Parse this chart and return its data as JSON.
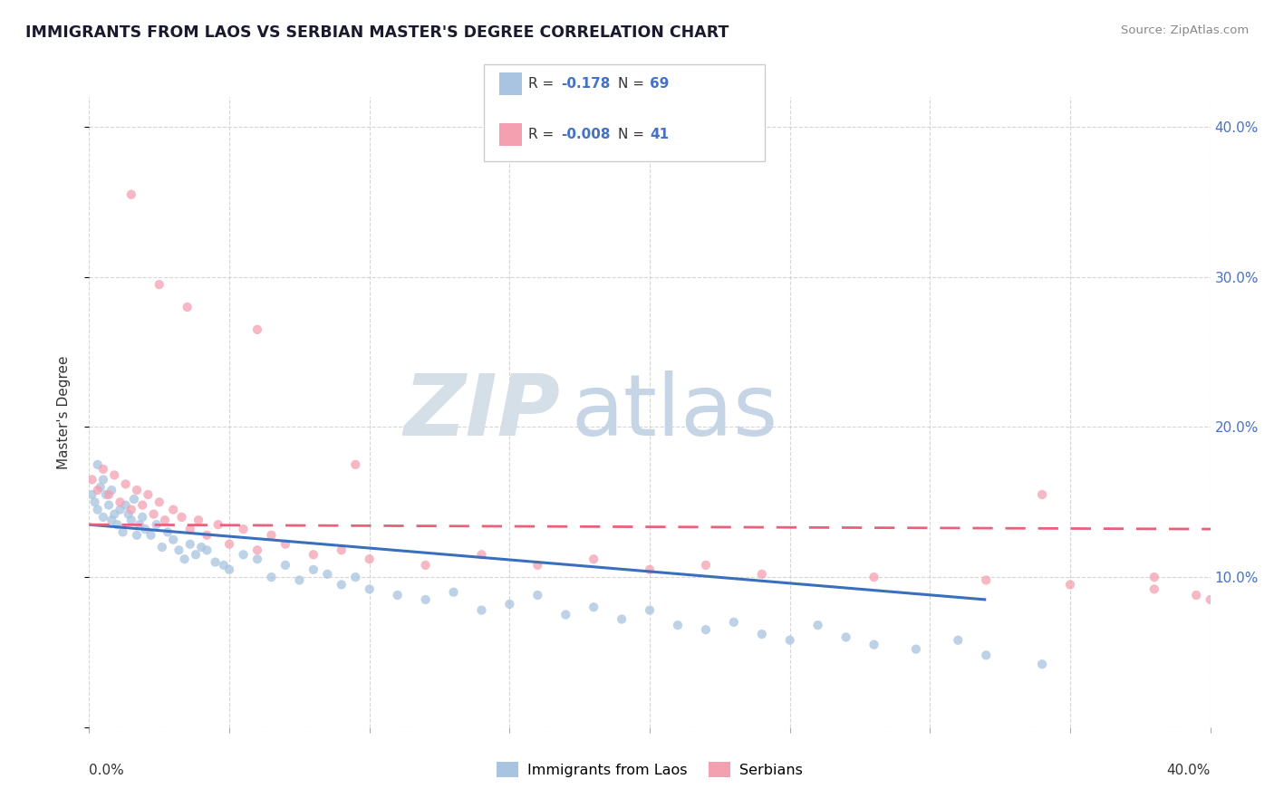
{
  "title": "IMMIGRANTS FROM LAOS VS SERBIAN MASTER'S DEGREE CORRELATION CHART",
  "source": "Source: ZipAtlas.com",
  "ylabel": "Master's Degree",
  "r_laos": -0.178,
  "n_laos": 69,
  "r_serbian": -0.008,
  "n_serbian": 41,
  "color_laos": "#a8c4e0",
  "color_serbian": "#f4a0b0",
  "color_laos_line": "#3a6fbd",
  "color_serbian_line": "#e8607a",
  "xlim": [
    0.0,
    0.4
  ],
  "ylim": [
    0.0,
    0.42
  ],
  "background": "#ffffff",
  "laos_x": [
    0.001,
    0.002,
    0.003,
    0.004,
    0.005,
    0.006,
    0.007,
    0.008,
    0.009,
    0.01,
    0.011,
    0.012,
    0.013,
    0.014,
    0.015,
    0.016,
    0.017,
    0.018,
    0.019,
    0.02,
    0.022,
    0.024,
    0.026,
    0.028,
    0.03,
    0.032,
    0.034,
    0.036,
    0.038,
    0.04,
    0.042,
    0.045,
    0.048,
    0.05,
    0.055,
    0.06,
    0.065,
    0.07,
    0.075,
    0.08,
    0.085,
    0.09,
    0.095,
    0.1,
    0.11,
    0.12,
    0.13,
    0.14,
    0.15,
    0.16,
    0.17,
    0.18,
    0.19,
    0.2,
    0.21,
    0.22,
    0.23,
    0.24,
    0.25,
    0.26,
    0.27,
    0.28,
    0.295,
    0.31,
    0.32,
    0.34,
    0.003,
    0.005,
    0.008
  ],
  "laos_y": [
    0.155,
    0.15,
    0.145,
    0.16,
    0.14,
    0.155,
    0.148,
    0.138,
    0.142,
    0.135,
    0.145,
    0.13,
    0.148,
    0.142,
    0.138,
    0.152,
    0.128,
    0.135,
    0.14,
    0.132,
    0.128,
    0.135,
    0.12,
    0.13,
    0.125,
    0.118,
    0.112,
    0.122,
    0.115,
    0.12,
    0.118,
    0.11,
    0.108,
    0.105,
    0.115,
    0.112,
    0.1,
    0.108,
    0.098,
    0.105,
    0.102,
    0.095,
    0.1,
    0.092,
    0.088,
    0.085,
    0.09,
    0.078,
    0.082,
    0.088,
    0.075,
    0.08,
    0.072,
    0.078,
    0.068,
    0.065,
    0.07,
    0.062,
    0.058,
    0.068,
    0.06,
    0.055,
    0.052,
    0.058,
    0.048,
    0.042,
    0.175,
    0.165,
    0.158
  ],
  "serbian_x": [
    0.001,
    0.003,
    0.005,
    0.007,
    0.009,
    0.011,
    0.013,
    0.015,
    0.017,
    0.019,
    0.021,
    0.023,
    0.025,
    0.027,
    0.03,
    0.033,
    0.036,
    0.039,
    0.042,
    0.046,
    0.05,
    0.055,
    0.06,
    0.065,
    0.07,
    0.08,
    0.09,
    0.1,
    0.12,
    0.14,
    0.16,
    0.18,
    0.2,
    0.22,
    0.24,
    0.28,
    0.32,
    0.35,
    0.38,
    0.395,
    0.4
  ],
  "serbian_y": [
    0.165,
    0.158,
    0.172,
    0.155,
    0.168,
    0.15,
    0.162,
    0.145,
    0.158,
    0.148,
    0.155,
    0.142,
    0.15,
    0.138,
    0.145,
    0.14,
    0.132,
    0.138,
    0.128,
    0.135,
    0.122,
    0.132,
    0.118,
    0.128,
    0.122,
    0.115,
    0.118,
    0.112,
    0.108,
    0.115,
    0.108,
    0.112,
    0.105,
    0.108,
    0.102,
    0.1,
    0.098,
    0.095,
    0.092,
    0.088,
    0.085
  ],
  "serbian_outliers_x": [
    0.015,
    0.025,
    0.035,
    0.06,
    0.095,
    0.34,
    0.38
  ],
  "serbian_outliers_y": [
    0.355,
    0.295,
    0.28,
    0.265,
    0.175,
    0.155,
    0.1
  ]
}
